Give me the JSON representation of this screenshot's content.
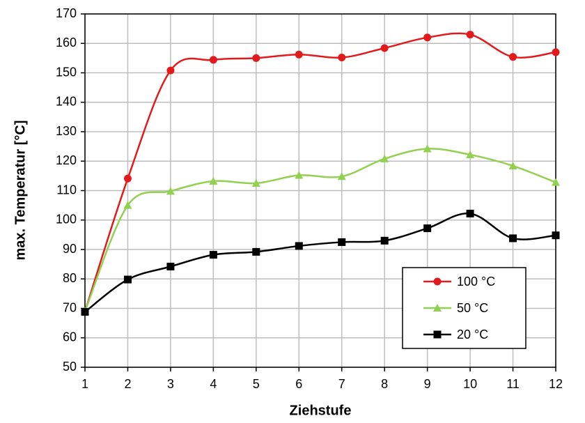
{
  "chart_data": {
    "type": "line",
    "x_label": "Ziehstufe",
    "y_label": "max. Temperatur [°C]",
    "x": [
      1,
      2,
      3,
      4,
      5,
      6,
      7,
      8,
      9,
      10,
      11,
      12
    ],
    "xlim": [
      1,
      12
    ],
    "xticks": [
      1,
      2,
      3,
      4,
      5,
      6,
      7,
      8,
      9,
      10,
      11,
      12
    ],
    "ylim": [
      50,
      170
    ],
    "yticks": [
      50,
      60,
      70,
      80,
      90,
      100,
      110,
      120,
      130,
      140,
      150,
      160,
      170
    ],
    "grid": true,
    "legend": "lower right",
    "series": [
      {
        "name": "100 °C",
        "color": "#e31a1c",
        "marker": "circle",
        "values": [
          68.9,
          114.1,
          150.8,
          154.4,
          155,
          156.2,
          155.2,
          158.4,
          162,
          163,
          155.4,
          157
        ]
      },
      {
        "name": "50 °C",
        "color": "#92d050",
        "marker": "triangle",
        "values": [
          69,
          105,
          109.8,
          113.2,
          112.5,
          115.2,
          114.8,
          120.8,
          124.2,
          122.2,
          118.4,
          112.8
        ]
      },
      {
        "name": "20 °C",
        "color": "#000000",
        "marker": "square",
        "values": [
          68.8,
          79.8,
          84.2,
          88.2,
          89.2,
          91.2,
          92.5,
          93,
          97.2,
          102.2,
          93.8,
          94.8
        ]
      }
    ]
  }
}
